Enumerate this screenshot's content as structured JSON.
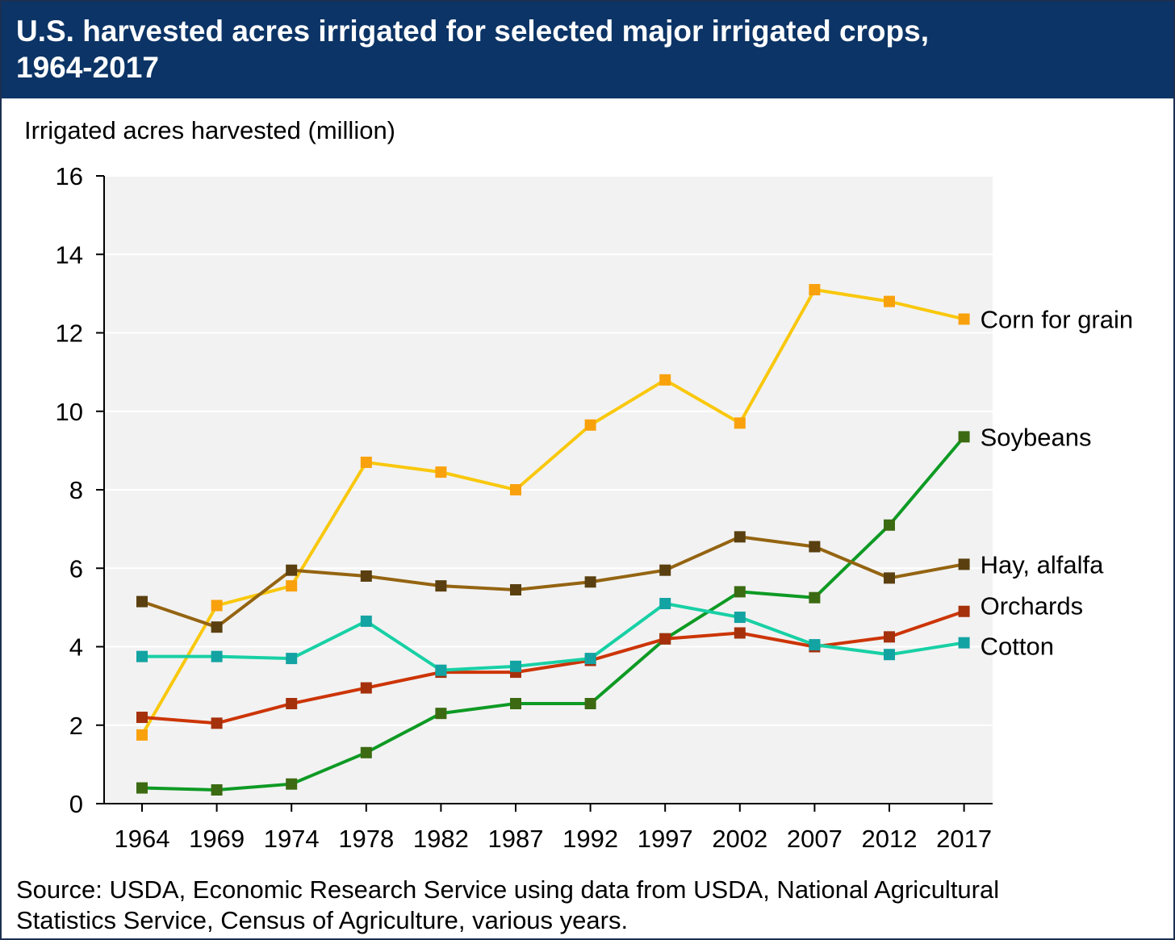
{
  "header": {
    "title_line1": "U.S. harvested acres irrigated for selected major irrigated crops,",
    "title_line2": "1964-2017"
  },
  "source": {
    "line1": "Source: USDA, Economic Research Service using data from USDA, National Agricultural",
    "line2": "Statistics Service, Census of Agriculture, various years."
  },
  "chart_data": {
    "type": "line",
    "title": "U.S. harvested acres irrigated for selected major irrigated crops, 1964-2017",
    "ylabel": "Irrigated acres harvested (million)",
    "xlabel": "",
    "ylim": [
      0,
      16
    ],
    "yticks": [
      "0",
      "2",
      "4",
      "6",
      "8",
      "10",
      "12",
      "14",
      "16"
    ],
    "categories": [
      "1964",
      "1969",
      "1974",
      "1978",
      "1982",
      "1987",
      "1992",
      "1997",
      "2002",
      "2007",
      "2012",
      "2017"
    ],
    "grid": "horizontal",
    "legend": "labels at right end of lines",
    "series": [
      {
        "name": "Corn for grain",
        "line_color": "#f9c80e",
        "marker_color": "#f9a10c",
        "values": [
          1.75,
          5.05,
          5.55,
          8.7,
          8.45,
          8.0,
          9.65,
          10.8,
          9.7,
          13.1,
          12.8,
          12.35
        ]
      },
      {
        "name": "Soybeans",
        "line_color": "#0e9a24",
        "marker_color": "#3c6a12",
        "values": [
          0.4,
          0.35,
          0.5,
          1.3,
          2.3,
          2.55,
          2.55,
          4.2,
          5.4,
          5.25,
          7.1,
          9.35
        ]
      },
      {
        "name": "Hay, alfalfa",
        "line_color": "#946411",
        "marker_color": "#5a4010",
        "values": [
          5.15,
          4.5,
          5.95,
          5.8,
          5.55,
          5.45,
          5.65,
          5.95,
          6.8,
          6.55,
          5.75,
          6.1
        ]
      },
      {
        "name": "Orchards",
        "line_color": "#cc3506",
        "marker_color": "#a5300c",
        "values": [
          2.2,
          2.05,
          2.55,
          2.95,
          3.35,
          3.35,
          3.65,
          4.2,
          4.35,
          4.0,
          4.25,
          4.9
        ]
      },
      {
        "name": "Cotton",
        "line_color": "#18d0a5",
        "marker_color": "#13a3a2",
        "values": [
          3.75,
          3.75,
          3.7,
          4.65,
          3.4,
          3.5,
          3.7,
          5.1,
          4.75,
          4.05,
          3.8,
          4.1
        ]
      }
    ],
    "plot_background": "#f2f2f2",
    "header_color": "#0c3466"
  }
}
